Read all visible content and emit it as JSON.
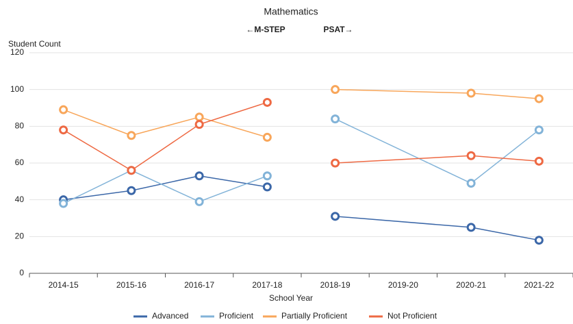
{
  "chart_data": {
    "type": "line",
    "title": "Mathematics",
    "annotations": [
      "←M-STEP",
      "PSAT→"
    ],
    "y_label": "Student Count",
    "x_label": "School Year",
    "categories": [
      "2014-15",
      "2015-16",
      "2016-17",
      "2017-18",
      "2018-19",
      "2019-20",
      "2020-21",
      "2021-22"
    ],
    "test_change_after": "2017-18",
    "connect_gaps": true,
    "series": [
      {
        "name": "Advanced",
        "color": "#3b67a8",
        "values": [
          40,
          45,
          53,
          47,
          31,
          null,
          25,
          18
        ]
      },
      {
        "name": "Proficient",
        "color": "#82b3d8",
        "values": [
          38,
          56,
          39,
          53,
          84,
          null,
          49,
          78
        ]
      },
      {
        "name": "Partially Proficient",
        "color": "#f8a65a",
        "values": [
          89,
          75,
          85,
          74,
          100,
          null,
          98,
          95
        ]
      },
      {
        "name": "Not Proficient",
        "color": "#ee6943",
        "values": [
          78,
          56,
          81,
          93,
          60,
          null,
          64,
          61
        ]
      }
    ],
    "ylim": [
      0,
      120
    ],
    "yticks": [
      0,
      20,
      40,
      60,
      80,
      100,
      120
    ],
    "grid": true,
    "legend": "bottom"
  }
}
